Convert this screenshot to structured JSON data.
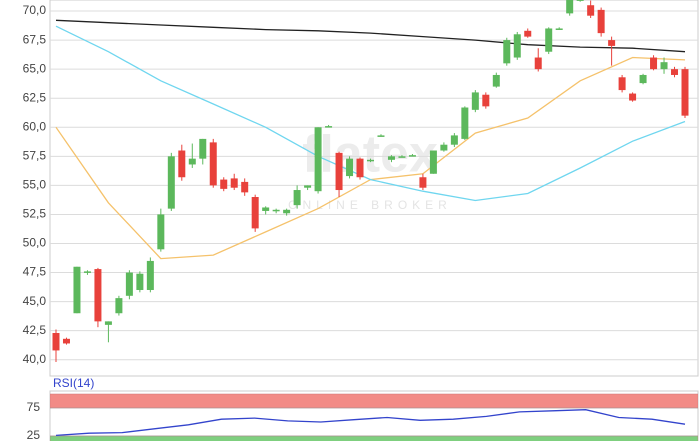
{
  "chart_data": [
    {
      "type": "candlestick",
      "watermark": "flatex",
      "watermark_subtitle": "ONLINE BROKER",
      "up_color": "#5cb85c",
      "down_color": "#e8413b",
      "open": [
        42.3,
        41.8,
        44.0,
        47.5,
        47.8,
        43.0,
        44.0,
        45.5,
        46.0,
        46.0,
        49.5,
        53.0,
        58.0,
        56.8,
        57.3,
        58.7,
        55.5,
        55.6,
        55.3,
        54.0,
        52.8,
        52.8,
        52.6,
        53.3,
        54.8,
        54.5,
        60.1,
        57.8,
        55.8,
        57.3,
        57.1,
        59.3,
        57.2,
        57.5,
        57.6,
        55.7,
        56.0,
        58.0,
        58.5,
        59.0,
        61.5,
        62.8,
        63.5,
        65.5,
        66.0,
        68.3,
        66.0,
        66.5,
        68.5,
        69.8,
        71.0,
        70.5,
        70.1,
        67.5,
        64.3,
        62.9,
        63.8,
        66.0,
        65.0,
        65.0,
        65.0
      ],
      "high": [
        42.6,
        41.9,
        48.0,
        47.7,
        47.9,
        43.3,
        45.5,
        47.7,
        47.6,
        48.8,
        53.0,
        57.8,
        58.5,
        58.6,
        59.0,
        59.0,
        55.7,
        56.0,
        55.6,
        54.2,
        53.2,
        53.0,
        53.0,
        55.0,
        55.0,
        60.0,
        60.2,
        57.9,
        57.5,
        57.4,
        57.3,
        59.4,
        57.6,
        57.6,
        57.7,
        56.0,
        58.0,
        58.7,
        59.5,
        61.8,
        63.2,
        63.0,
        64.7,
        67.7,
        68.2,
        68.5,
        66.8,
        68.6,
        68.6,
        71.2,
        71.2,
        70.9,
        70.3,
        67.8,
        64.5,
        63.0,
        64.6,
        66.2,
        66.0,
        65.2,
        65.2
      ],
      "low": [
        39.8,
        41.3,
        44.0,
        47.3,
        42.8,
        41.5,
        43.8,
        45.2,
        45.8,
        45.8,
        49.3,
        52.8,
        55.4,
        56.5,
        56.8,
        54.8,
        54.5,
        54.6,
        54.1,
        51.0,
        52.5,
        52.6,
        52.4,
        53.0,
        54.6,
        54.3,
        60.0,
        54.0,
        55.6,
        55.5,
        57.0,
        59.2,
        57.0,
        57.4,
        57.5,
        54.6,
        56.0,
        57.9,
        58.3,
        58.9,
        61.3,
        61.6,
        63.4,
        65.3,
        65.8,
        67.7,
        64.8,
        66.3,
        68.4,
        69.6,
        70.8,
        69.4,
        67.8,
        65.3,
        63.0,
        62.2,
        63.7,
        64.9,
        64.6,
        64.3,
        60.8
      ],
      "close": [
        40.8,
        41.4,
        48.0,
        47.6,
        43.3,
        43.3,
        45.3,
        47.5,
        47.4,
        48.5,
        52.5,
        57.5,
        55.7,
        57.3,
        59.0,
        55.0,
        54.7,
        54.8,
        54.4,
        51.3,
        53.1,
        52.9,
        52.9,
        54.6,
        55.0,
        60.0,
        60.1,
        54.6,
        57.3,
        55.7,
        57.2,
        59.3,
        57.5,
        57.5,
        57.6,
        54.8,
        58.0,
        58.5,
        59.3,
        61.7,
        63.0,
        61.8,
        64.5,
        67.5,
        68.0,
        67.8,
        65.0,
        68.5,
        68.5,
        71.0,
        71.0,
        69.6,
        68.1,
        67.0,
        63.2,
        62.3,
        64.5,
        65.0,
        65.6,
        64.5,
        61.0
      ],
      "lines": [
        {
          "color": "#222222",
          "values": [
            69.2,
            69.0,
            68.8,
            68.6,
            68.4,
            68.3,
            68.1,
            67.8,
            67.5,
            67.1,
            66.9,
            66.8,
            66.5
          ]
        },
        {
          "color": "#f5c26b",
          "values": [
            60.0,
            53.5,
            48.7,
            49.0,
            51.0,
            53.0,
            55.5,
            56.0,
            59.5,
            60.8,
            64.0,
            66.0,
            65.8
          ]
        },
        {
          "color": "#6fd6ef",
          "values": [
            68.7,
            66.5,
            64.0,
            62.0,
            60.0,
            57.5,
            55.5,
            54.5,
            53.7,
            54.3,
            56.5,
            58.8,
            60.5
          ]
        }
      ],
      "ylim": [
        38.6,
        70.95
      ],
      "yticks": [
        {
          "value": 40,
          "label": "40,0"
        },
        {
          "value": 42.5,
          "label": "42,5"
        },
        {
          "value": 45,
          "label": "45,0"
        },
        {
          "value": 47.5,
          "label": "47,5"
        },
        {
          "value": 50,
          "label": "50,0"
        },
        {
          "value": 52.5,
          "label": "52,5"
        },
        {
          "value": 55,
          "label": "55,0"
        },
        {
          "value": 57.5,
          "label": "57,5"
        },
        {
          "value": 60,
          "label": "60,0"
        },
        {
          "value": 62.5,
          "label": "62,5"
        },
        {
          "value": 65,
          "label": "65,0"
        },
        {
          "value": 67.5,
          "label": "67,5"
        },
        {
          "value": 70,
          "label": "70,0"
        }
      ],
      "grid": true
    },
    {
      "type": "line",
      "title": "RSI(14)",
      "color": "#3344cc",
      "values": [
        26,
        30,
        31,
        38,
        45,
        55,
        57,
        52,
        50,
        54,
        58,
        53,
        55,
        60,
        68,
        70,
        72,
        58,
        55,
        46
      ],
      "bands": [
        {
          "range": [
            75,
            100
          ],
          "color": "#f28b86"
        },
        {
          "range": [
            0,
            25
          ],
          "color": "#7fcf7f"
        }
      ],
      "ylim": [
        16,
        100
      ],
      "yticks": [
        25,
        75
      ]
    }
  ]
}
